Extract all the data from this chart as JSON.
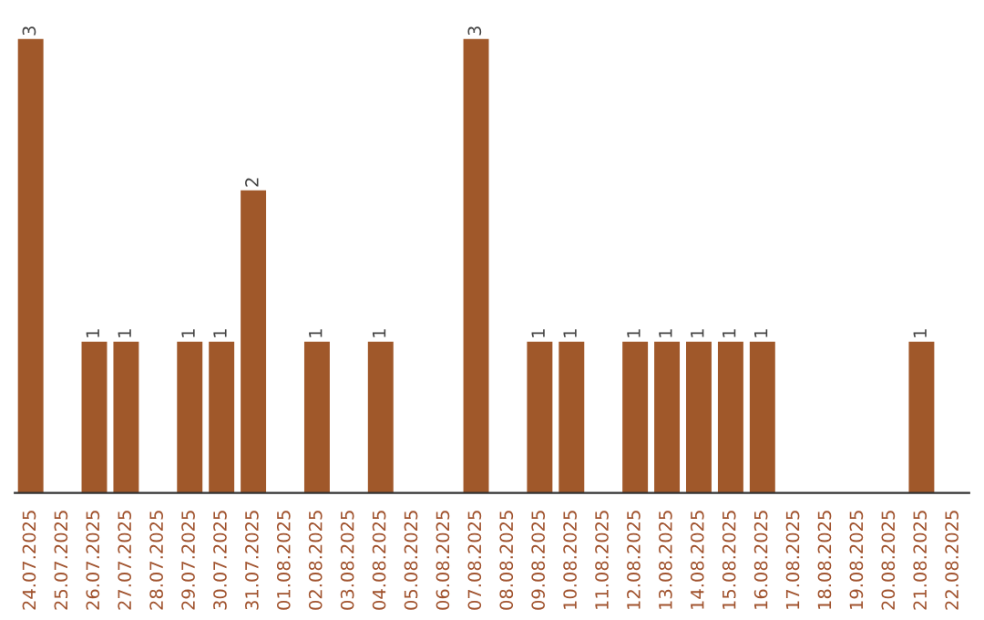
{
  "chart_data": {
    "type": "bar",
    "categories": [
      "24.07.2025",
      "25.07.2025",
      "26.07.2025",
      "27.07.2025",
      "28.07.2025",
      "29.07.2025",
      "30.07.2025",
      "31.07.2025",
      "01.08.2025",
      "02.08.2025",
      "03.08.2025",
      "04.08.2025",
      "05.08.2025",
      "06.08.2025",
      "07.08.2025",
      "08.08.2025",
      "09.08.2025",
      "10.08.2025",
      "11.08.2025",
      "12.08.2025",
      "13.08.2025",
      "14.08.2025",
      "15.08.2025",
      "16.08.2025",
      "17.08.2025",
      "18.08.2025",
      "19.08.2025",
      "20.08.2025",
      "21.08.2025",
      "22.08.2025"
    ],
    "values": [
      3,
      0,
      1,
      1,
      0,
      1,
      1,
      2,
      0,
      1,
      0,
      1,
      0,
      0,
      3,
      0,
      1,
      1,
      0,
      1,
      1,
      1,
      1,
      1,
      0,
      0,
      0,
      0,
      1,
      0
    ],
    "value_labels": [
      "3",
      null,
      "1",
      "1",
      null,
      "1",
      "1",
      "2",
      null,
      "1",
      null,
      "1",
      null,
      null,
      "3",
      null,
      "1",
      "1",
      null,
      "1",
      "1",
      "1",
      "1",
      "1",
      null,
      null,
      null,
      null,
      "1",
      null
    ],
    "color": "#a0582a",
    "grid": false,
    "legend": false,
    "tick_labels": "x"
  }
}
